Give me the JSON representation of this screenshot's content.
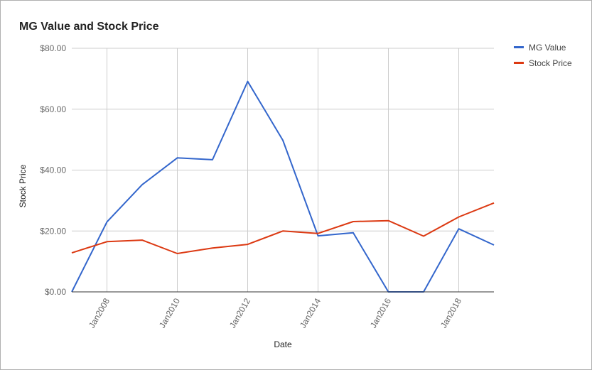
{
  "chart_data": {
    "type": "line",
    "title": "MG Value and Stock Price",
    "xlabel": "Date",
    "ylabel": "Stock Price",
    "ylim": [
      0,
      80
    ],
    "xlim": [
      2007,
      2019
    ],
    "y_ticks": [
      "$0.00",
      "$20.00",
      "$40.00",
      "$60.00",
      "$80.00"
    ],
    "x_ticks": [
      "Jan2008",
      "Jan2010",
      "Jan2012",
      "Jan2014",
      "Jan2016",
      "Jan2018"
    ],
    "grid": true,
    "legend_position": "right",
    "x": [
      2007,
      2008,
      2009,
      2010,
      2011,
      2012,
      2013,
      2014,
      2015,
      2016,
      2017,
      2018,
      2019
    ],
    "series": [
      {
        "name": "MG Value",
        "color": "#3366cc",
        "values": [
          0,
          23.0,
          35.2,
          44.0,
          43.4,
          69.1,
          49.8,
          18.4,
          19.4,
          0,
          0,
          20.7,
          15.4
        ]
      },
      {
        "name": "Stock Price",
        "color": "#dc3912",
        "values": [
          12.8,
          16.5,
          17.0,
          12.6,
          14.4,
          15.6,
          20.0,
          19.2,
          23.1,
          23.4,
          18.3,
          24.6,
          29.2
        ]
      }
    ]
  }
}
